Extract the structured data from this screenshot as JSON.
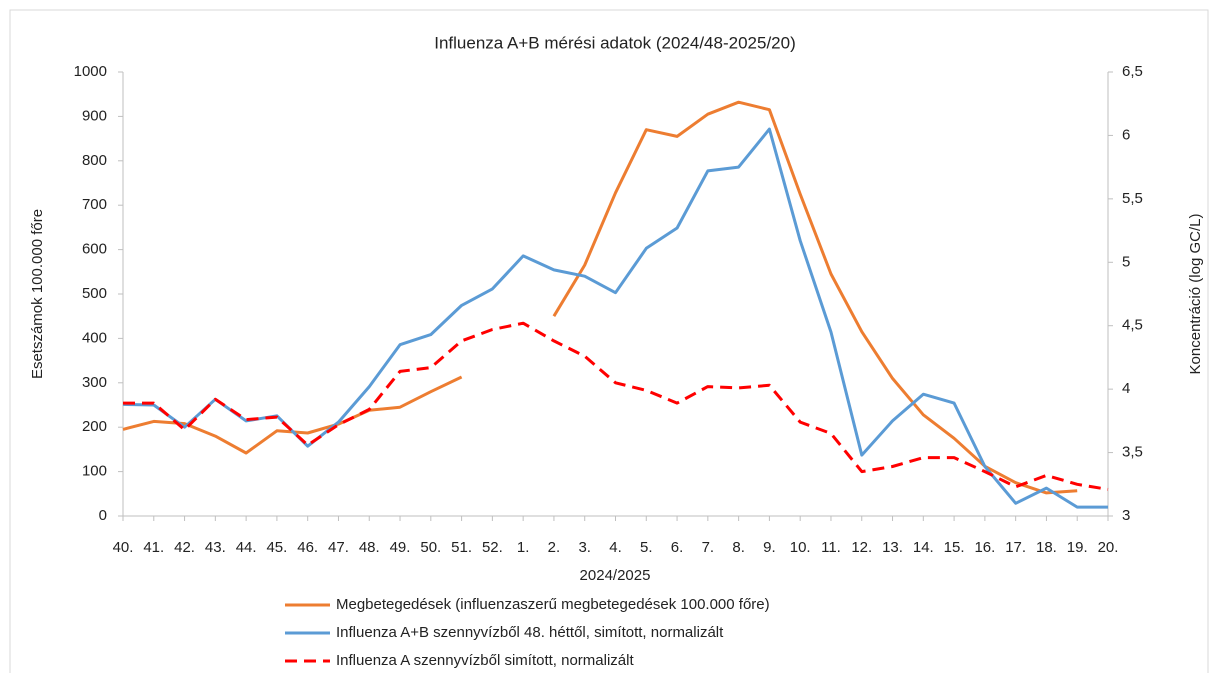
{
  "chart_data": {
    "type": "line",
    "title": "Influenza A+B mérési adatok (2024/48-2025/20)",
    "x_label": "2024/2025",
    "y_label": "Esetszámok 100.000 főre",
    "y2_label": "Koncentráció (log GC/L)",
    "categories": [
      "40.",
      "41.",
      "42.",
      "43.",
      "44.",
      "45.",
      "46.",
      "47.",
      "48.",
      "49.",
      "50.",
      "51.",
      "52.",
      "1.",
      "2.",
      "3.",
      "4.",
      "5.",
      "6.",
      "7.",
      "8.",
      "9.",
      "10.",
      "11.",
      "12.",
      "13.",
      "14.",
      "15.",
      "16.",
      "17.",
      "18.",
      "19.",
      "20."
    ],
    "ylim": [
      0,
      1000
    ],
    "yticks": [
      0,
      100,
      200,
      300,
      400,
      500,
      600,
      700,
      800,
      900,
      1000
    ],
    "y2lim": [
      3,
      6.5
    ],
    "y2ticks": [
      3,
      {
        "value": 3.5,
        "label": "3,5"
      },
      4,
      {
        "value": 4.5,
        "label": "4,5"
      },
      5,
      {
        "value": 5.5,
        "label": "5,5"
      },
      6,
      {
        "value": 6.5,
        "label": "6,5"
      }
    ],
    "legend": "bottom",
    "series": [
      {
        "name": "Megbetegedések (influenzaszerű megbetegedések 100.000 főre)",
        "color": "#ed7d31",
        "dash": false,
        "values": [
          195,
          213,
          208,
          180,
          142,
          192,
          187,
          207,
          238,
          245,
          280,
          313,
          null,
          null,
          450,
          565,
          728,
          870,
          855,
          905,
          932,
          915,
          725,
          545,
          415,
          310,
          228,
          175,
          112,
          75,
          52,
          57,
          null
        ]
      },
      {
        "name": "Influenza A+B szennyvízből 48. héttől, simított, normalizált",
        "color": "#5b9bd5",
        "dash": false,
        "axis": "y2",
        "values": [
          3.88,
          3.875,
          3.7,
          3.92,
          3.75,
          3.79,
          3.55,
          3.74,
          4.02,
          4.35,
          4.43,
          4.66,
          4.79,
          5.05,
          4.94,
          4.89,
          4.76,
          5.11,
          5.27,
          5.72,
          5.75,
          6.05,
          5.17,
          4.45,
          3.48,
          3.75,
          3.96,
          3.89,
          3.39,
          3.1,
          3.22,
          3.07,
          3.07
        ]
      },
      {
        "name": "Influenza A szennyvízből simított, normalizált",
        "color": "#ff0000",
        "dash": true,
        "axis": "y2",
        "values": [
          3.89,
          3.89,
          3.68,
          3.92,
          3.76,
          3.78,
          3.56,
          3.72,
          3.84,
          4.14,
          4.17,
          4.38,
          4.47,
          4.52,
          4.38,
          4.26,
          4.05,
          3.99,
          3.89,
          4.02,
          4.01,
          4.03,
          3.74,
          3.65,
          3.35,
          3.39,
          3.46,
          3.46,
          3.35,
          3.23,
          3.32,
          3.25,
          3.21
        ]
      }
    ]
  }
}
